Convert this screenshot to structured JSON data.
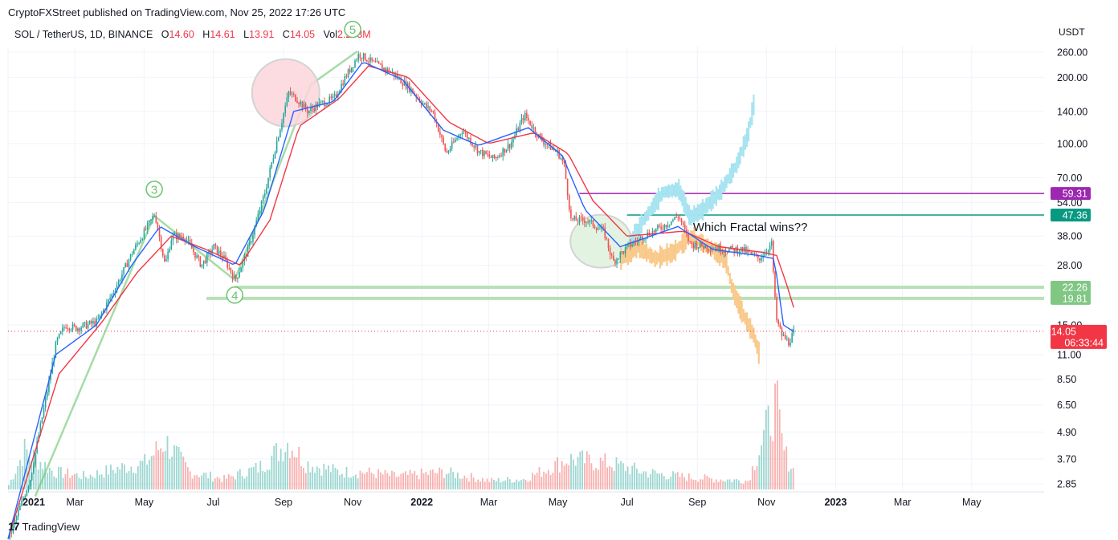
{
  "attribution": "CryptoFXStreet published on TradingView.com, Nov 25, 2022 17:26 UTC",
  "legend": {
    "symbol": "SOL / TetherUS, 1D, BINANCE",
    "o_label": "O",
    "o_value": "14.60",
    "h_label": "H",
    "h_value": "14.61",
    "l_label": "L",
    "l_value": "13.91",
    "c_label": "C",
    "c_value": "14.05",
    "vol_label": "Vol",
    "vol_value": "2.203M"
  },
  "currency": "USDT",
  "brand": "TradingView",
  "colors": {
    "up": "#26a69a",
    "down": "#ef5350",
    "ema_fast": "#2962ff",
    "ema_slow": "#f23645",
    "wave": "#6ac46c",
    "fractal_blue": "#a6e3f0",
    "fractal_orange": "#f9c98b",
    "level_purple": "#9c27b0",
    "level_teal": "#089981",
    "level_green": "#b7e1b5",
    "last_price": "#f23645"
  },
  "chart_data": {
    "type": "candlestick",
    "scale": "log",
    "ylim": [
      2.6,
      290
    ],
    "x_start": "2021-01-01",
    "x_ticks": [
      "2021",
      "Mar",
      "May",
      "Jul",
      "Sep",
      "Nov",
      "2022",
      "Mar",
      "May",
      "Jul",
      "Sep",
      "Nov",
      "2023",
      "Mar",
      "May"
    ],
    "y_ticks": [
      "260.00",
      "200.00",
      "140.00",
      "100.00",
      "70.00",
      "54.00",
      "38.00",
      "28.00",
      "15.00",
      "11.00",
      "8.50",
      "6.50",
      "4.90",
      "3.70",
      "2.85"
    ],
    "price_path": [
      [
        "2021-01-01",
        1.6
      ],
      [
        "2021-01-20",
        3.0
      ],
      [
        "2021-02-05",
        8.0
      ],
      [
        "2021-02-12",
        12.5
      ],
      [
        "2021-02-20",
        15.0
      ],
      [
        "2021-03-01",
        14.5
      ],
      [
        "2021-03-20",
        15.5
      ],
      [
        "2021-04-05",
        22.0
      ],
      [
        "2021-04-20",
        32.0
      ],
      [
        "2021-05-01",
        40.0
      ],
      [
        "2021-05-10",
        48.0
      ],
      [
        "2021-05-19",
        28.0
      ],
      [
        "2021-05-25",
        38.0
      ],
      [
        "2021-06-05",
        38.0
      ],
      [
        "2021-06-20",
        28.0
      ],
      [
        "2021-07-01",
        34.0
      ],
      [
        "2021-07-10",
        30.0
      ],
      [
        "2021-07-20",
        24.0
      ],
      [
        "2021-08-01",
        34.0
      ],
      [
        "2021-08-15",
        60.0
      ],
      [
        "2021-08-25",
        100.0
      ],
      [
        "2021-09-05",
        170.0
      ],
      [
        "2021-09-12",
        160.0
      ],
      [
        "2021-09-22",
        140.0
      ],
      [
        "2021-10-01",
        150.0
      ],
      [
        "2021-10-15",
        160.0
      ],
      [
        "2021-10-25",
        200.0
      ],
      [
        "2021-11-06",
        255.0
      ],
      [
        "2021-11-20",
        230.0
      ],
      [
        "2021-12-05",
        210.0
      ],
      [
        "2021-12-20",
        180.0
      ],
      [
        "2022-01-05",
        145.0
      ],
      [
        "2022-01-10",
        140.0
      ],
      [
        "2022-01-22",
        90.0
      ],
      [
        "2022-02-05",
        115.0
      ],
      [
        "2022-02-20",
        92.0
      ],
      [
        "2022-03-05",
        85.0
      ],
      [
        "2022-03-20",
        100.0
      ],
      [
        "2022-04-01",
        135.0
      ],
      [
        "2022-04-15",
        105.0
      ],
      [
        "2022-05-01",
        90.0
      ],
      [
        "2022-05-06",
        80.0
      ],
      [
        "2022-05-12",
        45.0
      ],
      [
        "2022-05-25",
        45.0
      ],
      [
        "2022-06-10",
        40.0
      ],
      [
        "2022-06-18",
        29.0
      ],
      [
        "2022-07-01",
        34.0
      ],
      [
        "2022-07-15",
        38.0
      ],
      [
        "2022-08-01",
        42.0
      ],
      [
        "2022-08-15",
        47.0
      ],
      [
        "2022-08-25",
        35.0
      ],
      [
        "2022-09-10",
        34.0
      ],
      [
        "2022-09-25",
        33.0
      ],
      [
        "2022-10-10",
        33.0
      ],
      [
        "2022-10-25",
        30.0
      ],
      [
        "2022-11-05",
        35.0
      ],
      [
        "2022-11-09",
        16.0
      ],
      [
        "2022-11-14",
        13.5
      ],
      [
        "2022-11-20",
        12.5
      ],
      [
        "2022-11-25",
        14.05
      ]
    ],
    "ema_fast": [
      [
        "2021-01-01",
        1.6
      ],
      [
        "2021-02-12",
        11.0
      ],
      [
        "2021-03-20",
        15.0
      ],
      [
        "2021-04-20",
        28.0
      ],
      [
        "2021-05-15",
        42.0
      ],
      [
        "2021-06-15",
        34.0
      ],
      [
        "2021-07-20",
        28.0
      ],
      [
        "2021-08-15",
        50.0
      ],
      [
        "2021-09-10",
        140.0
      ],
      [
        "2021-10-15",
        155.0
      ],
      [
        "2021-11-10",
        235.0
      ],
      [
        "2021-12-15",
        195.0
      ],
      [
        "2022-01-20",
        115.0
      ],
      [
        "2022-02-20",
        98.0
      ],
      [
        "2022-04-05",
        118.0
      ],
      [
        "2022-05-05",
        88.0
      ],
      [
        "2022-05-25",
        50.0
      ],
      [
        "2022-06-25",
        34.0
      ],
      [
        "2022-08-15",
        42.0
      ],
      [
        "2022-09-15",
        33.0
      ],
      [
        "2022-10-25",
        31.0
      ],
      [
        "2022-11-08",
        30.0
      ],
      [
        "2022-11-16",
        15.0
      ],
      [
        "2022-11-25",
        14.0
      ]
    ],
    "ema_slow": [
      [
        "2021-01-01",
        1.6
      ],
      [
        "2021-02-15",
        9.0
      ],
      [
        "2021-03-25",
        15.5
      ],
      [
        "2021-04-25",
        26.0
      ],
      [
        "2021-05-25",
        38.0
      ],
      [
        "2021-06-25",
        33.0
      ],
      [
        "2021-07-25",
        28.0
      ],
      [
        "2021-08-20",
        45.0
      ],
      [
        "2021-09-15",
        120.0
      ],
      [
        "2021-10-20",
        160.0
      ],
      [
        "2021-11-15",
        225.0
      ],
      [
        "2021-12-20",
        200.0
      ],
      [
        "2022-01-25",
        125.0
      ],
      [
        "2022-03-01",
        100.0
      ],
      [
        "2022-04-10",
        112.0
      ],
      [
        "2022-05-10",
        90.0
      ],
      [
        "2022-06-01",
        55.0
      ],
      [
        "2022-07-01",
        38.0
      ],
      [
        "2022-08-20",
        40.0
      ],
      [
        "2022-09-20",
        34.0
      ],
      [
        "2022-10-30",
        32.0
      ],
      [
        "2022-11-10",
        31.0
      ],
      [
        "2022-11-20",
        22.0
      ],
      [
        "2022-11-25",
        18.0
      ]
    ],
    "fractal_blue": [
      [
        "2022-07-01",
        34.0
      ],
      [
        "2022-07-15",
        45.0
      ],
      [
        "2022-08-01",
        60.0
      ],
      [
        "2022-08-15",
        62.0
      ],
      [
        "2022-08-25",
        46.0
      ],
      [
        "2022-09-05",
        50.0
      ],
      [
        "2022-09-20",
        60.0
      ],
      [
        "2022-10-05",
        80.0
      ],
      [
        "2022-10-15",
        110.0
      ],
      [
        "2022-10-20",
        150.0
      ]
    ],
    "fractal_orange": [
      [
        "2022-06-25",
        30.0
      ],
      [
        "2022-07-10",
        34.0
      ],
      [
        "2022-07-25",
        30.0
      ],
      [
        "2022-08-10",
        32.0
      ],
      [
        "2022-08-25",
        38.0
      ],
      [
        "2022-09-10",
        34.0
      ],
      [
        "2022-09-25",
        30.0
      ],
      [
        "2022-10-01",
        22.0
      ],
      [
        "2022-10-10",
        17.0
      ],
      [
        "2022-10-20",
        13.5
      ],
      [
        "2022-10-25",
        11.0
      ]
    ],
    "volume_scale_max": 1.0,
    "volume_path": [
      [
        "2021-01-01",
        0.05
      ],
      [
        "2021-01-15",
        0.45
      ],
      [
        "2021-02-10",
        0.2
      ],
      [
        "2021-03-10",
        0.15
      ],
      [
        "2021-04-10",
        0.25
      ],
      [
        "2021-05-01",
        0.3
      ],
      [
        "2021-05-19",
        0.55
      ],
      [
        "2021-06-10",
        0.2
      ],
      [
        "2021-07-10",
        0.12
      ],
      [
        "2021-08-10",
        0.25
      ],
      [
        "2021-09-05",
        0.55
      ],
      [
        "2021-09-20",
        0.3
      ],
      [
        "2021-10-20",
        0.2
      ],
      [
        "2021-11-10",
        0.2
      ],
      [
        "2021-12-10",
        0.15
      ],
      [
        "2022-01-20",
        0.2
      ],
      [
        "2022-03-01",
        0.1
      ],
      [
        "2022-04-01",
        0.12
      ],
      [
        "2022-05-10",
        0.35
      ],
      [
        "2022-06-15",
        0.3
      ],
      [
        "2022-07-15",
        0.2
      ],
      [
        "2022-08-15",
        0.15
      ],
      [
        "2022-09-15",
        0.12
      ],
      [
        "2022-10-15",
        0.1
      ],
      [
        "2022-11-09",
        1.0
      ],
      [
        "2022-11-15",
        0.45
      ],
      [
        "2022-11-25",
        0.2
      ]
    ],
    "levels": [
      {
        "value": 59.31,
        "label": "59.31",
        "color": "#9c27b0",
        "from": "2022-05-20"
      },
      {
        "value": 47.36,
        "label": "47.36",
        "color": "#089981",
        "from": "2022-07-01"
      },
      {
        "value": 22.26,
        "label": "22.26",
        "color": "#b7e1b5",
        "from": "2021-07-20"
      },
      {
        "value": 19.81,
        "label": "19.81",
        "color": "#b7e1b5",
        "from": "2021-06-25"
      }
    ],
    "last_price": {
      "value": 14.05,
      "label": "14.05",
      "countdown": "06:33:44"
    },
    "wave_labels": [
      {
        "label": "3",
        "date": "2021-05-10",
        "value": 62.0
      },
      {
        "label": "4",
        "date": "2021-07-20",
        "value": 20.5
      },
      {
        "label": "5",
        "date": "2021-11-01",
        "value": 330.0
      }
    ],
    "wave_path": [
      [
        "2021-01-25",
        2.5
      ],
      [
        "2021-05-10",
        47.0
      ],
      [
        "2021-07-20",
        24.0
      ],
      [
        "2021-09-25",
        185.0
      ],
      [
        "2021-11-05",
        262.0
      ]
    ],
    "annotation": {
      "text": "Which Fractal wins??",
      "date": "2022-09-10",
      "value": 40.0
    },
    "circles": [
      {
        "date": "2021-09-03",
        "value": 170.0,
        "color": "pink"
      },
      {
        "date": "2022-06-08",
        "value": 36.0,
        "color": "green"
      }
    ]
  }
}
